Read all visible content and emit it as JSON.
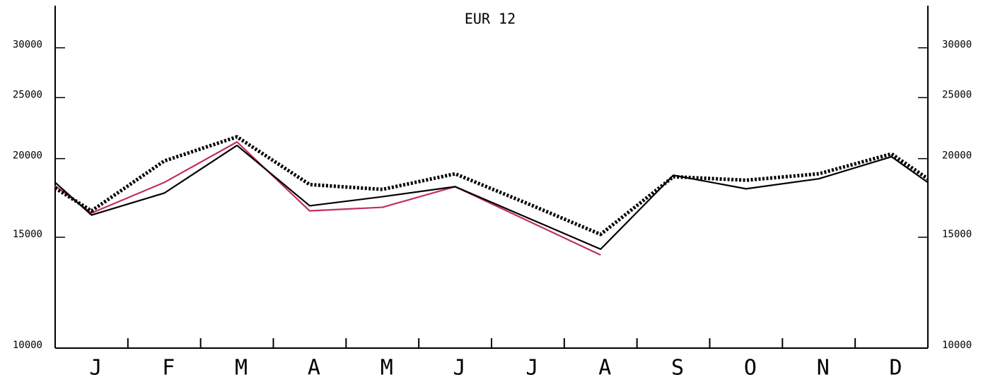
{
  "chart_data": {
    "type": "line",
    "title": "EUR 12",
    "categories": [
      null,
      "J",
      "F",
      "M",
      "A",
      "M",
      "J",
      "J",
      "A",
      "S",
      "O",
      "N",
      "D",
      null
    ],
    "series": [
      {
        "color": "#c0305a",
        "style": "solid",
        "values": [
          18100,
          16390,
          18330,
          21260,
          16520,
          16740,
          18050,
          15930,
          14060,
          null,
          null,
          null,
          null,
          null
        ]
      },
      {
        "color": "#000000",
        "style": "solid",
        "values": [
          18330,
          16270,
          17630,
          20990,
          16830,
          17400,
          18050,
          16100,
          14360,
          18820,
          17910,
          18580,
          20140,
          18330
        ]
      },
      {
        "color": "#000000",
        "style": "dotted",
        "values": [
          17960,
          16520,
          19830,
          21660,
          18190,
          17870,
          18920,
          16960,
          15160,
          18720,
          18480,
          18920,
          20350,
          18580
        ]
      }
    ],
    "log_scale": true,
    "ylim": [
      10000,
      35000
    ],
    "yticks": [
      10000,
      15000,
      20000,
      25000,
      30000
    ]
  }
}
